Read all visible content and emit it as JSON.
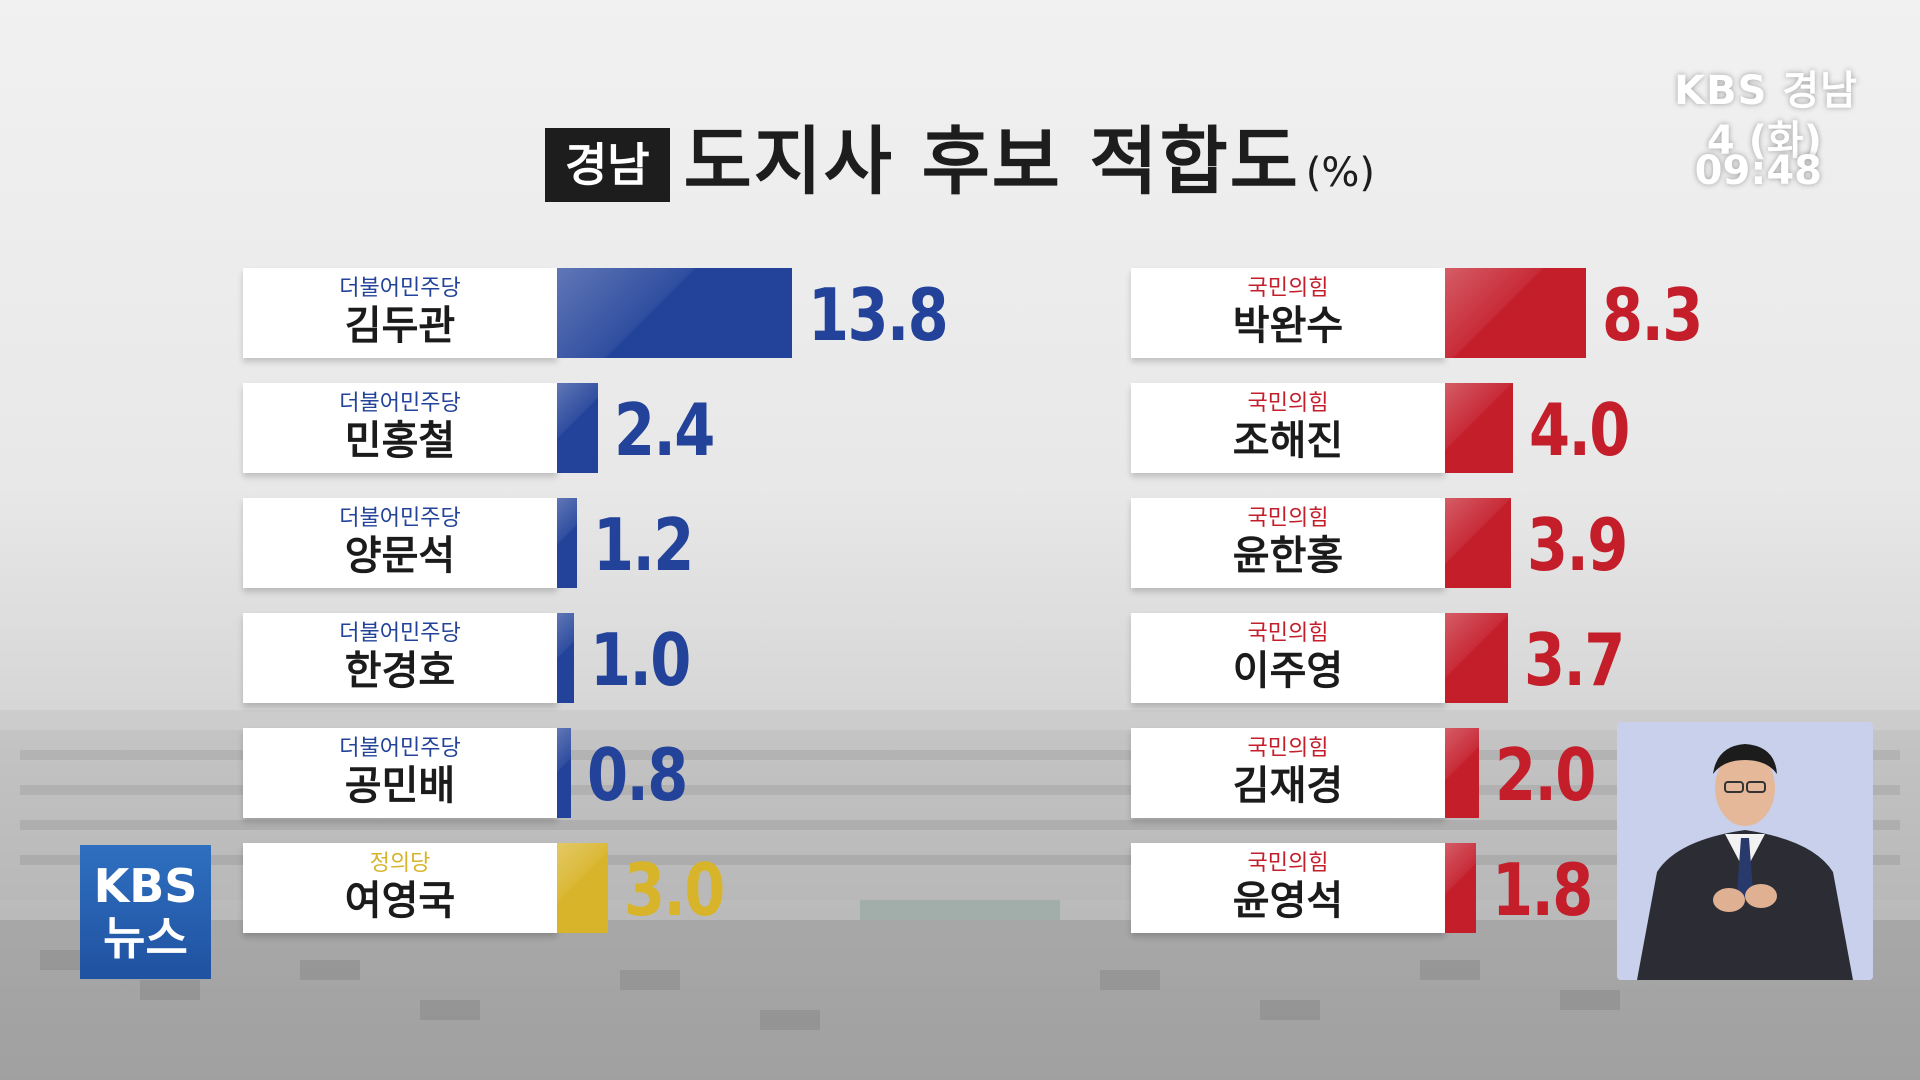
{
  "header": {
    "region": "경남",
    "title": "도지사 후보 적합도",
    "unit": "(%)"
  },
  "broadcaster": {
    "logo": "KBS 경남",
    "date": "4 (화)",
    "time": "09:48",
    "news_badge": [
      "KBS",
      "뉴스"
    ]
  },
  "colors": {
    "democratic": "#23439a",
    "ppp": "#c41e2b",
    "justice": "#d8b42a"
  },
  "chart_data": {
    "type": "bar",
    "title": "경남 도지사 후보 적합도",
    "unit": "%",
    "series": [
      {
        "group": "left",
        "candidates": [
          {
            "party": "더불어민주당",
            "name": "김두관",
            "value": 13.8,
            "color": "#23439a"
          },
          {
            "party": "더불어민주당",
            "name": "민홍철",
            "value": 2.4,
            "color": "#23439a"
          },
          {
            "party": "더불어민주당",
            "name": "양문석",
            "value": 1.2,
            "color": "#23439a"
          },
          {
            "party": "더불어민주당",
            "name": "한경호",
            "value": 1.0,
            "color": "#23439a"
          },
          {
            "party": "더불어민주당",
            "name": "공민배",
            "value": 0.8,
            "color": "#23439a"
          },
          {
            "party": "정의당",
            "name": "여영국",
            "value": 3.0,
            "color": "#d8b42a"
          }
        ]
      },
      {
        "group": "right",
        "candidates": [
          {
            "party": "국민의힘",
            "name": "박완수",
            "value": 8.3,
            "color": "#c41e2b"
          },
          {
            "party": "국민의힘",
            "name": "조해진",
            "value": 4.0,
            "color": "#c41e2b"
          },
          {
            "party": "국민의힘",
            "name": "윤한홍",
            "value": 3.9,
            "color": "#c41e2b"
          },
          {
            "party": "국민의힘",
            "name": "이주영",
            "value": 3.7,
            "color": "#c41e2b"
          },
          {
            "party": "국민의힘",
            "name": "김재경",
            "value": 2.0,
            "color": "#c41e2b"
          },
          {
            "party": "국민의힘",
            "name": "윤영석",
            "value": 1.8,
            "color": "#c41e2b"
          }
        ]
      }
    ]
  }
}
